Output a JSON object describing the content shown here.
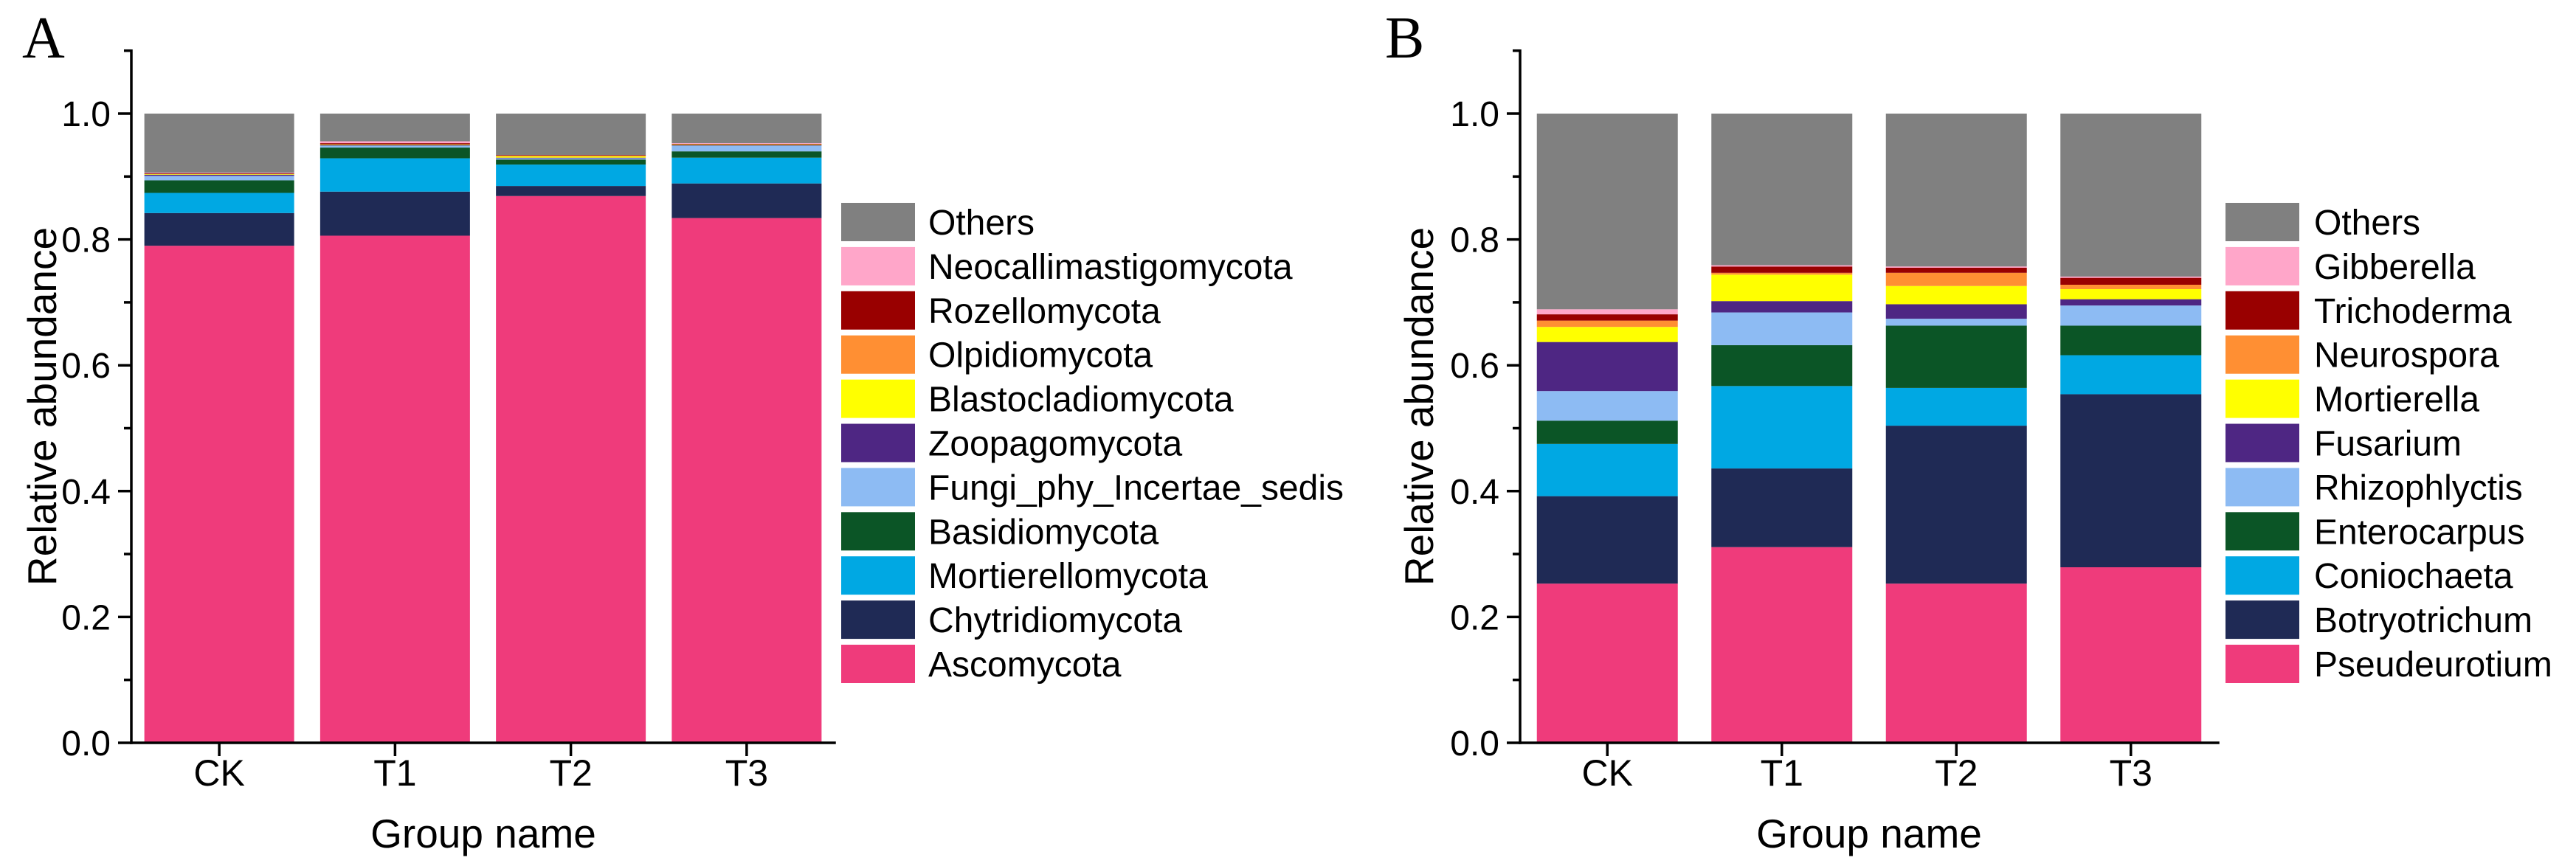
{
  "chart_data": [
    {
      "type": "bar",
      "stacked": true,
      "panel_label": "A",
      "xlabel": "Group name",
      "ylabel": "Relative abundance",
      "ylim": [
        0,
        1.1
      ],
      "yticks": [
        0,
        0.2,
        0.4,
        0.6,
        0.8,
        1.0
      ],
      "ytick_labels": [
        "0.0",
        "0.2",
        "0.4",
        "0.6",
        "0.8",
        "1.0"
      ],
      "grid": false,
      "legend_position": "right",
      "categories": [
        "CK",
        "T1",
        "T2",
        "T3"
      ],
      "series": [
        {
          "name": "Ascomycota",
          "color": "#EF3B7B",
          "values": [
            0.79,
            0.806,
            0.869,
            0.834
          ]
        },
        {
          "name": "Chytridiomycota",
          "color": "#1F2A55",
          "values": [
            0.052,
            0.07,
            0.016,
            0.055
          ]
        },
        {
          "name": "Mortierellomycota",
          "color": "#00A8E3",
          "values": [
            0.032,
            0.053,
            0.034,
            0.041
          ]
        },
        {
          "name": "Basidiomycota",
          "color": "#0B5526",
          "values": [
            0.02,
            0.017,
            0.008,
            0.01
          ]
        },
        {
          "name": "Fungi_phy_Incertae_sedis",
          "color": "#8DBBF3",
          "values": [
            0.007,
            0.003,
            0.002,
            0.009
          ]
        },
        {
          "name": "Zoopagomycota",
          "color": "#4E2683",
          "values": [
            0.002,
            0.001,
            0.001,
            0.001
          ]
        },
        {
          "name": "Blastocladiomycota",
          "color": "#FFFF00",
          "values": [
            0.001,
            0.001,
            0.002,
            0.001
          ]
        },
        {
          "name": "Olpidiomycota",
          "color": "#FF8F33",
          "values": [
            0.0,
            0.0,
            0.001,
            0.0
          ]
        },
        {
          "name": "Rozellomycota",
          "color": "#990000",
          "values": [
            0.001,
            0.002,
            0.001,
            0.001
          ]
        },
        {
          "name": "Neocallimastigomycota",
          "color": "#FFA6C9",
          "values": [
            0.001,
            0.003,
            0.0,
            0.001
          ]
        },
        {
          "name": "Others",
          "color": "#808080",
          "values": [
            0.094,
            0.044,
            0.066,
            0.047
          ]
        }
      ]
    },
    {
      "type": "bar",
      "stacked": true,
      "panel_label": "B",
      "xlabel": "Group name",
      "ylabel": "Relative abundance",
      "ylim": [
        0,
        1.1
      ],
      "yticks": [
        0,
        0.2,
        0.4,
        0.6,
        0.8,
        1.0
      ],
      "ytick_labels": [
        "0.0",
        "0.2",
        "0.4",
        "0.6",
        "0.8",
        "1.0"
      ],
      "grid": false,
      "legend_position": "right",
      "categories": [
        "CK",
        "T1",
        "T2",
        "T3"
      ],
      "series": [
        {
          "name": "Pseudeurotium",
          "color": "#EF3B7B",
          "values": [
            0.253,
            0.311,
            0.253,
            0.279
          ]
        },
        {
          "name": "Botryotrichum",
          "color": "#1F2A55",
          "values": [
            0.139,
            0.125,
            0.251,
            0.275
          ]
        },
        {
          "name": "Coniochaeta",
          "color": "#00A8E3",
          "values": [
            0.083,
            0.131,
            0.06,
            0.062
          ]
        },
        {
          "name": "Enterocarpus",
          "color": "#0B5526",
          "values": [
            0.037,
            0.065,
            0.099,
            0.047
          ]
        },
        {
          "name": "Rhizophlyctis",
          "color": "#8DBBF3",
          "values": [
            0.047,
            0.052,
            0.011,
            0.032
          ]
        },
        {
          "name": "Fusarium",
          "color": "#4E2683",
          "values": [
            0.078,
            0.018,
            0.023,
            0.01
          ]
        },
        {
          "name": "Mortierella",
          "color": "#FFFF00",
          "values": [
            0.024,
            0.042,
            0.029,
            0.016
          ]
        },
        {
          "name": "Neurospora",
          "color": "#FF8F33",
          "values": [
            0.01,
            0.003,
            0.021,
            0.007
          ]
        },
        {
          "name": "Trichoderma",
          "color": "#990000",
          "values": [
            0.01,
            0.01,
            0.008,
            0.011
          ]
        },
        {
          "name": "Gibberella",
          "color": "#FFA6C9",
          "values": [
            0.008,
            0.002,
            0.002,
            0.002
          ]
        },
        {
          "name": "Others",
          "color": "#808080",
          "values": [
            0.311,
            0.241,
            0.243,
            0.259
          ]
        }
      ]
    }
  ]
}
